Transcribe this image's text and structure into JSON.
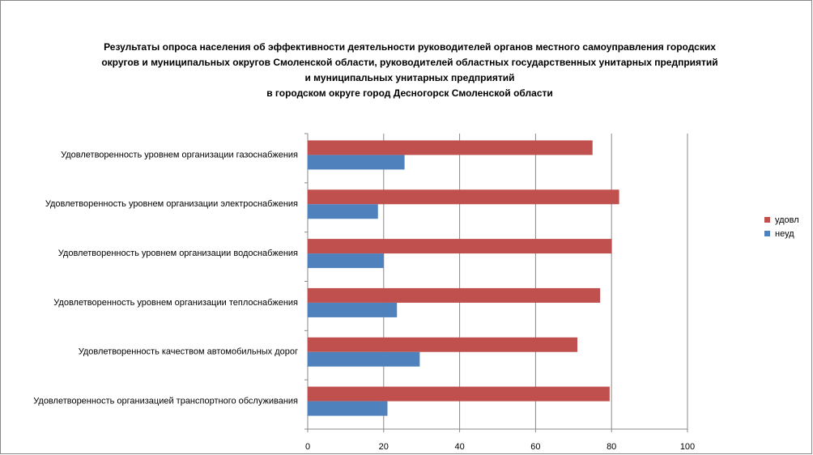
{
  "chart_data": {
    "type": "hbar",
    "title": [
      "Результаты опроса населения об эффективности деятельности руководителей органов местного самоуправления городских",
      "округов и муниципальных округов Смоленской области, руководителей областных государственных унитарных предприятий",
      "и муниципальных унитарных предприятий",
      "в городском округе город Десногорск Смоленской области"
    ],
    "categories": [
      "Удовлетворенность уровнем организации газоснабжения",
      "Удовлетворенность уровнем организации электроснабжения",
      "Удовлетворенность уровнем организации водоснабжения",
      "Удовлетворенность уровнем организации теплоснабжения",
      "Удовлетворенность качеством автомобильных дорог",
      "Удовлетворенность организацией транспортного обслуживания"
    ],
    "series": [
      {
        "name": "удовл",
        "color": "#c0504d",
        "values": [
          75,
          82,
          80,
          77,
          71,
          79.5
        ]
      },
      {
        "name": "неуд",
        "color": "#4f81bd",
        "values": [
          25.5,
          18.5,
          20,
          23.5,
          29.5,
          21
        ]
      }
    ],
    "xlim": [
      0,
      100
    ],
    "xticks": [
      0,
      20,
      40,
      60,
      80,
      100
    ],
    "grid": true,
    "legend": "right"
  }
}
